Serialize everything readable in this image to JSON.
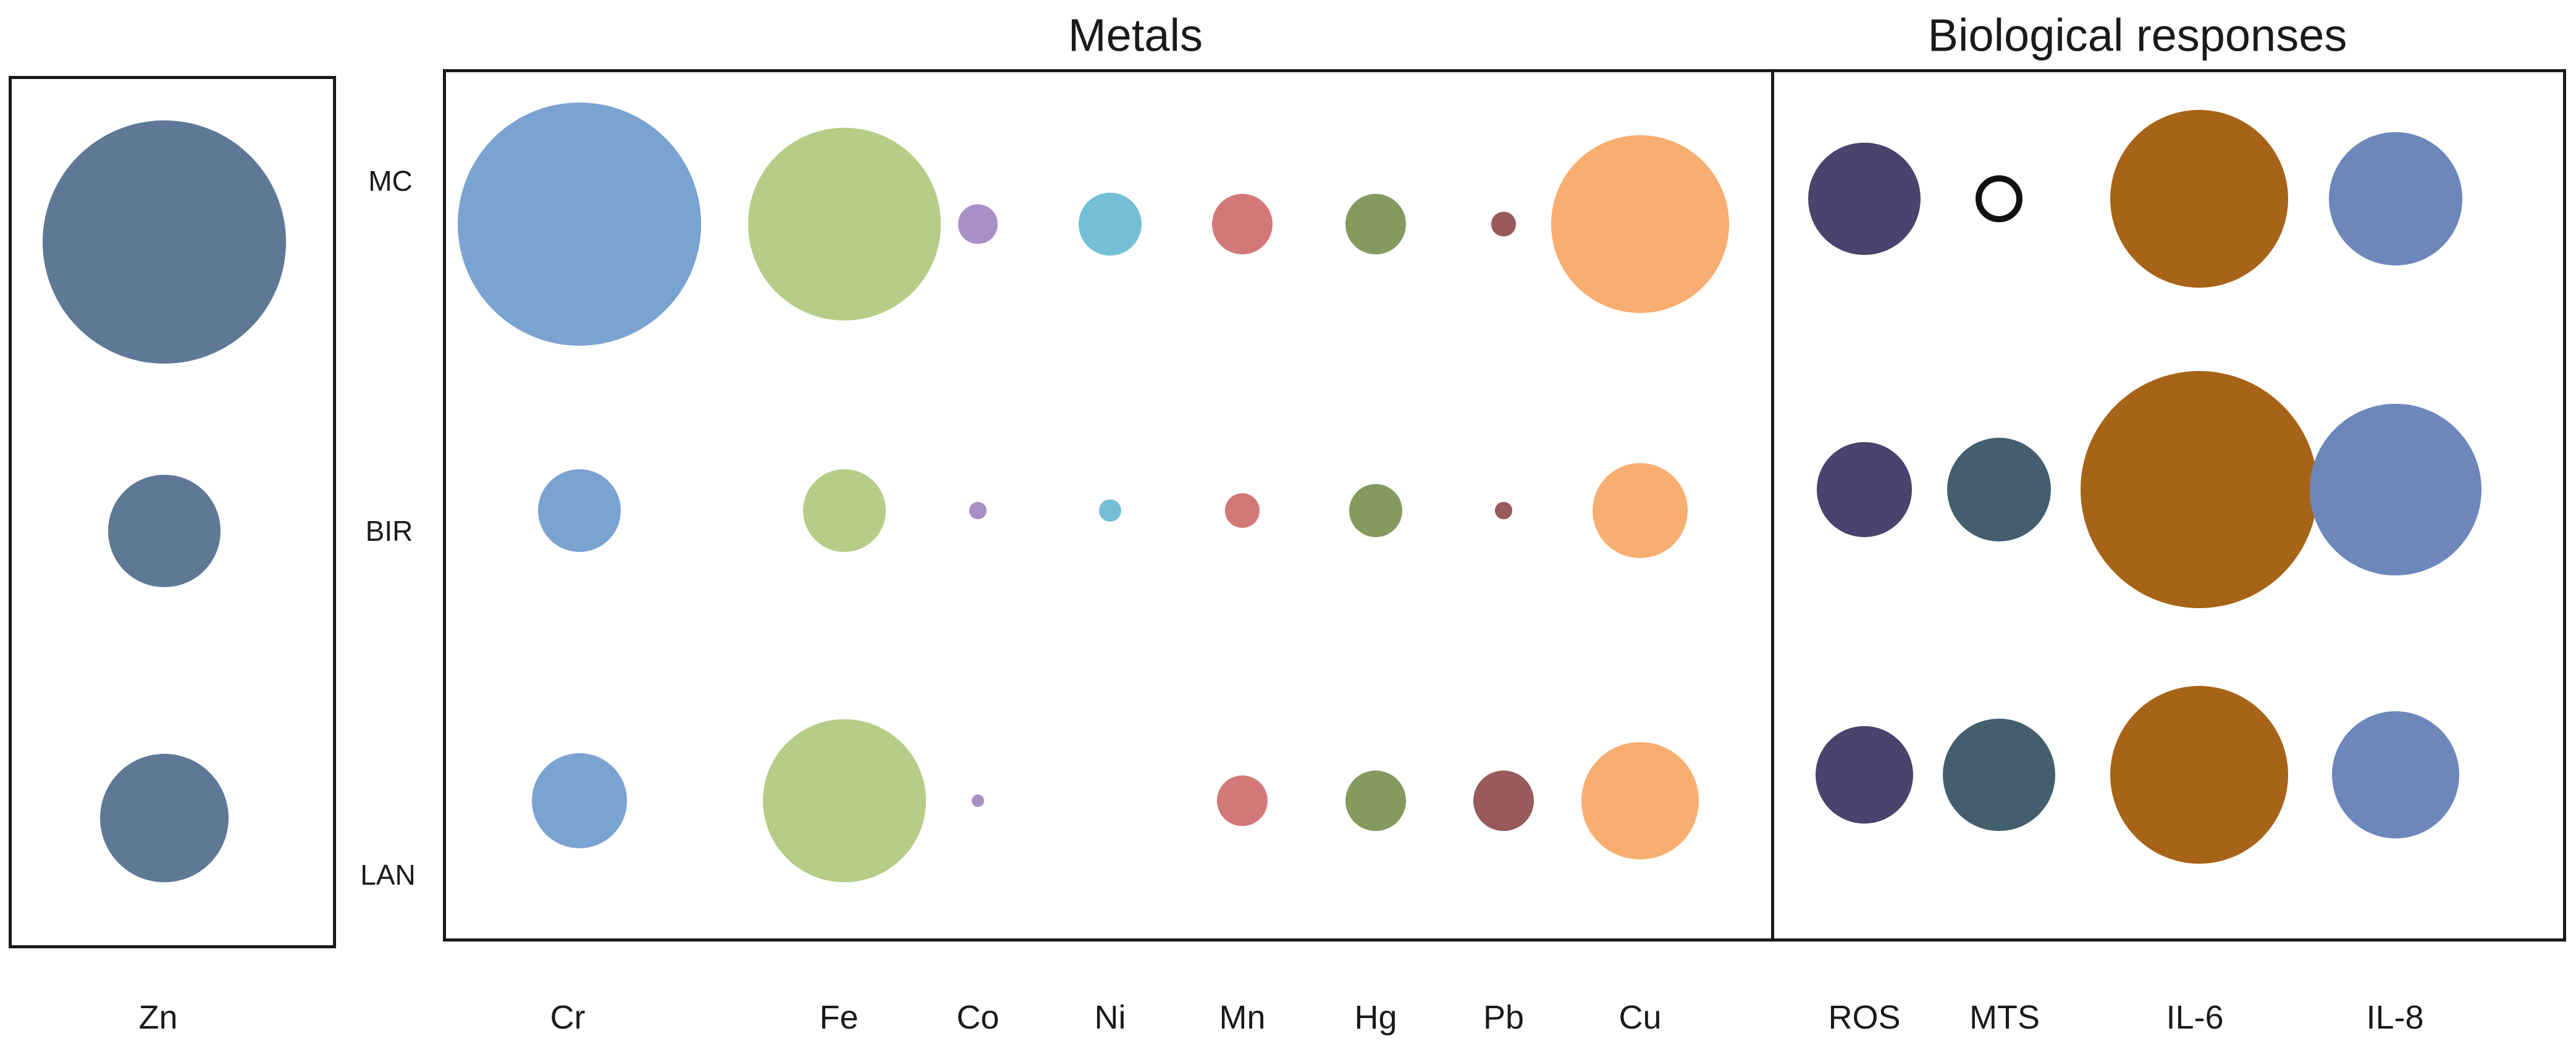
{
  "chart_data": {
    "type": "bubble",
    "title": "",
    "group_titles": {
      "metals": "Metals",
      "biological": "Biological responses"
    },
    "rows": [
      "MC",
      "BIR",
      "LAN"
    ],
    "panels": [
      {
        "name": "zn",
        "columns": [
          "Zn"
        ],
        "colors": [
          "#5f7896"
        ],
        "sizes": [
          [
            1.0
          ],
          [
            0.46
          ],
          [
            0.53
          ]
        ]
      },
      {
        "name": "metals",
        "columns": [
          "Cr",
          "Fe",
          "Co",
          "Ni",
          "Mn",
          "Hg",
          "Pb",
          "Cu"
        ],
        "colors": [
          "#7ba3d1",
          "#b5cd86",
          "#a98fc6",
          "#74bfd5",
          "#d37878",
          "#849a5e",
          "#985a5a",
          "#f8ae70"
        ],
        "sizes": [
          [
            1.0,
            0.79,
            0.16,
            0.26,
            0.25,
            0.25,
            0.1,
            0.73
          ],
          [
            0.34,
            0.34,
            0.07,
            0.09,
            0.14,
            0.22,
            0.07,
            0.39
          ],
          [
            0.39,
            0.67,
            0.05,
            0,
            0.21,
            0.25,
            0.25,
            0.48
          ]
        ]
      },
      {
        "name": "biological",
        "columns": [
          "ROS",
          "MTS",
          "IL-6",
          "IL-8"
        ],
        "colors": [
          "#4b426d",
          "#445e6e",
          "#a76418",
          "#6d87bb"
        ],
        "sizes": [
          [
            0.38,
            0.16,
            0.6,
            0.45
          ],
          [
            0.32,
            0.35,
            0.8,
            0.58
          ],
          [
            0.33,
            0.38,
            0.6,
            0.43
          ]
        ],
        "hollow": [
          [
            false,
            true,
            false,
            false
          ],
          [
            false,
            false,
            false,
            false
          ],
          [
            false,
            false,
            false,
            false
          ]
        ]
      }
    ],
    "grid": false,
    "legend": "none"
  }
}
